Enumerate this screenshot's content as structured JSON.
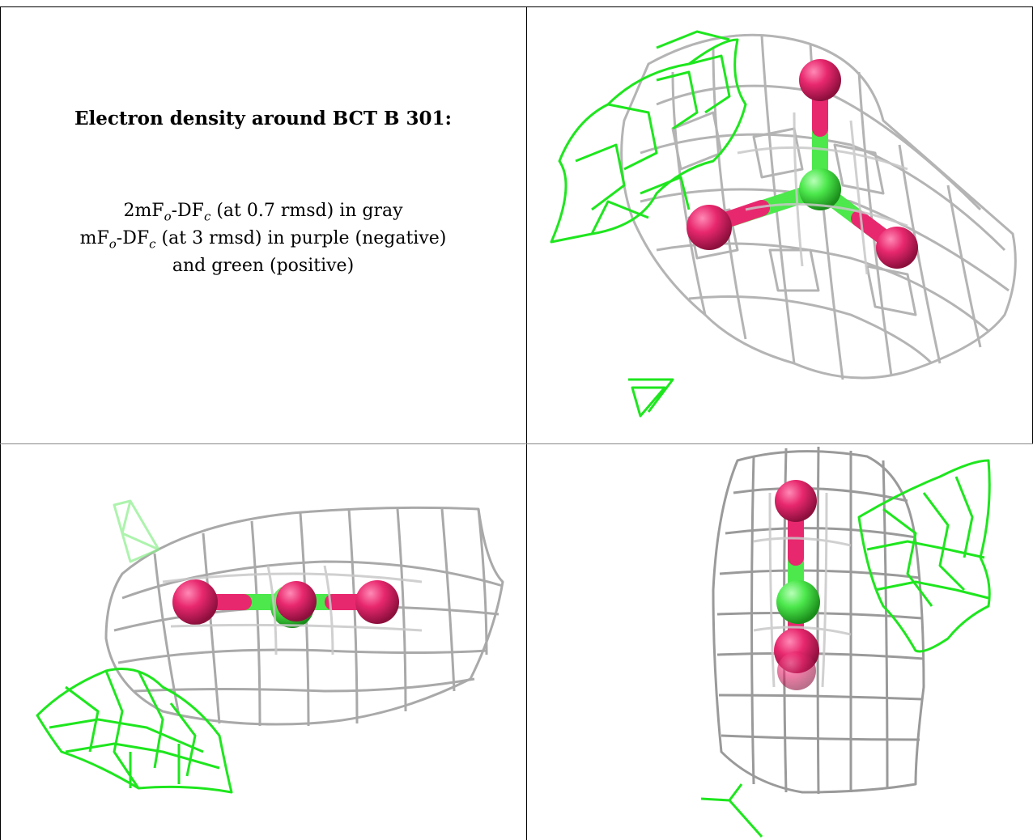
{
  "caption": {
    "title": "Electron density around BCT B 301:",
    "line1": {
      "a": "2mF",
      "s1": "o",
      "b": "-DF",
      "s2": "c",
      "c": " (at 0.7 rmsd) in gray"
    },
    "line2": {
      "a": "mF",
      "s1": "o",
      "b": "-DF",
      "s2": "c",
      "c": " (at 3 rmsd) in purple (negative)"
    },
    "line3": "and green (positive)"
  },
  "colors": {
    "mesh_gray": "#b4b4b4",
    "mesh_dark": "#8a8a8a",
    "mesh_green": "#1ee61e",
    "atom_red": "#e8286e",
    "atom_green": "#4ce84c"
  },
  "views": [
    {
      "name": "view-top-right"
    },
    {
      "name": "view-bottom-left"
    },
    {
      "name": "view-bottom-right"
    }
  ]
}
